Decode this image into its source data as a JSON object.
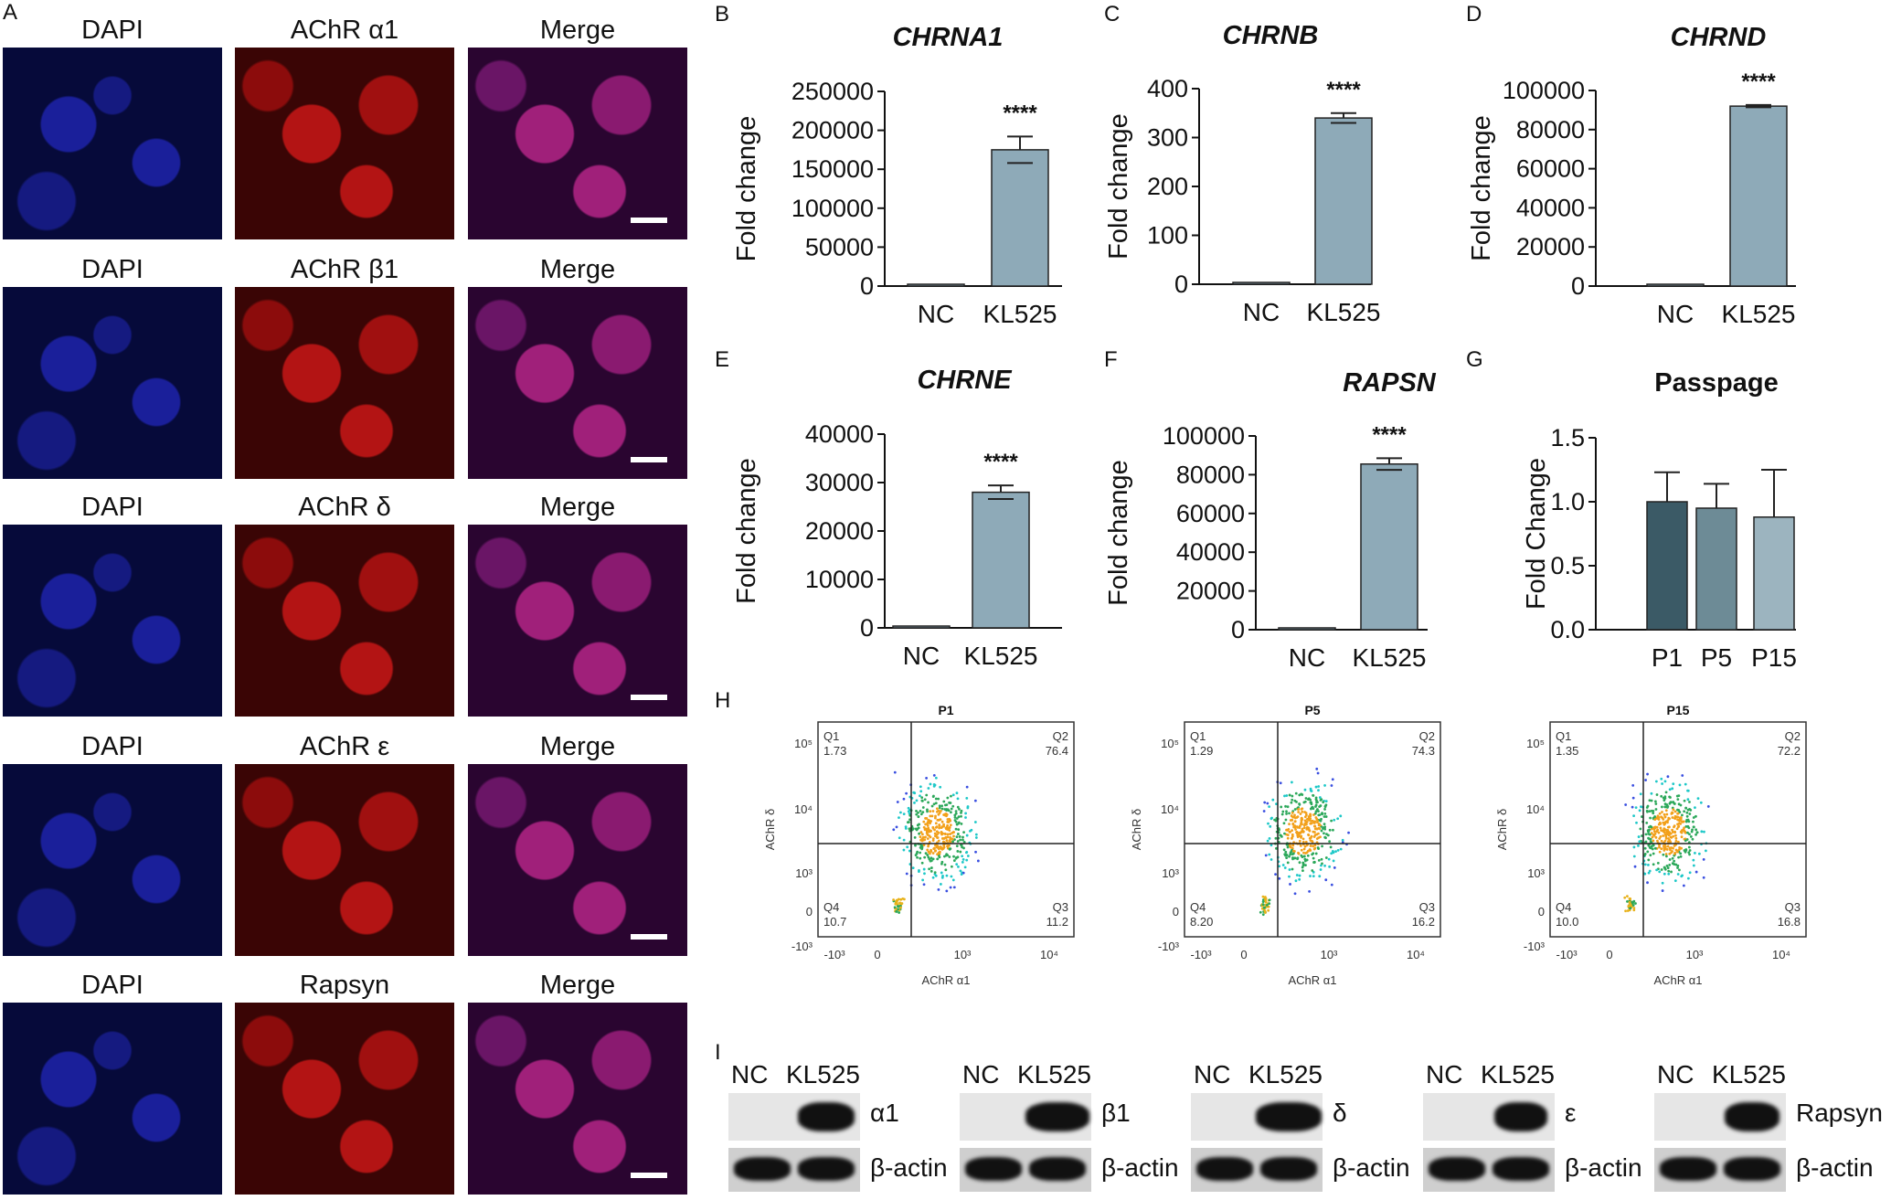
{
  "panel_letters": {
    "A": "A",
    "B": "B",
    "C": "C",
    "D": "D",
    "E": "E",
    "F": "F",
    "G": "G",
    "H": "H",
    "I": "I"
  },
  "microscopy": {
    "rows": [
      {
        "c1": "DAPI",
        "c2": "AChR α1",
        "c3": "Merge"
      },
      {
        "c1": "DAPI",
        "c2": "AChR β1",
        "c3": "Merge"
      },
      {
        "c1": "DAPI",
        "c2": "AChR δ",
        "c3": "Merge"
      },
      {
        "c1": "DAPI",
        "c2": "AChR ε",
        "c3": "Merge"
      },
      {
        "c1": "DAPI",
        "c2": "Rapsyn",
        "c3": "Merge"
      }
    ]
  },
  "chart_data": [
    {
      "type": "bar",
      "title": "CHRNA1",
      "ylabel": "Fold change",
      "categories": [
        "NC",
        "KL525"
      ],
      "values": [
        1,
        175000
      ],
      "errors": [
        0,
        17000
      ],
      "ylim": [
        0,
        250000
      ],
      "ticks": [
        "0",
        "50000",
        "100000",
        "150000",
        "200000",
        "250000"
      ],
      "significance": "****"
    },
    {
      "type": "bar",
      "title": "CHRNB",
      "ylabel": "Fold change",
      "categories": [
        "NC",
        "KL525"
      ],
      "values": [
        3,
        340
      ],
      "errors": [
        0,
        10
      ],
      "ylim": [
        0,
        400
      ],
      "ticks": [
        "0",
        "100",
        "200",
        "300",
        "400"
      ],
      "significance": "****"
    },
    {
      "type": "bar",
      "title": "CHRND",
      "ylabel": "Fold change",
      "categories": [
        "NC",
        "KL525"
      ],
      "values": [
        1,
        92000
      ],
      "errors": [
        0,
        600
      ],
      "ylim": [
        0,
        100000
      ],
      "ticks": [
        "0",
        "20000",
        "40000",
        "60000",
        "80000",
        "100000"
      ],
      "significance": "****"
    },
    {
      "type": "bar",
      "title": "CHRNE",
      "ylabel": "Fold change",
      "categories": [
        "NC",
        "KL525"
      ],
      "values": [
        1,
        28000
      ],
      "errors": [
        0,
        1400
      ],
      "ylim": [
        0,
        40000
      ],
      "ticks": [
        "0",
        "10000",
        "20000",
        "30000",
        "40000"
      ],
      "significance": "****"
    },
    {
      "type": "bar",
      "title": "RAPSN",
      "ylabel": "Fold change",
      "categories": [
        "NC",
        "KL525"
      ],
      "values": [
        1,
        85500
      ],
      "errors": [
        0,
        3000
      ],
      "ylim": [
        0,
        100000
      ],
      "ticks": [
        "0",
        "20000",
        "40000",
        "60000",
        "80000",
        "100000"
      ],
      "significance": "****"
    },
    {
      "type": "bar",
      "title": "Passpage",
      "ylabel": "Fold Change",
      "categories": [
        "P1",
        "P5",
        "P15"
      ],
      "values": [
        1.0,
        0.95,
        0.88
      ],
      "errors": [
        0.23,
        0.19,
        0.37
      ],
      "ylim": [
        0,
        1.5
      ],
      "ticks": [
        "0.0",
        "0.5",
        "1.0",
        "1.5"
      ],
      "colors": [
        "#3b5a66",
        "#6d8b96",
        "#9cb4bf"
      ]
    }
  ],
  "bar_color": "#8eaab8",
  "flow": [
    {
      "title": "P1",
      "q1": "Q1",
      "q1v": "1.73",
      "q2": "Q2",
      "q2v": "76.4",
      "q3": "Q3",
      "q3v": "11.2",
      "q4": "Q4",
      "q4v": "10.7"
    },
    {
      "title": "P5",
      "q1": "Q1",
      "q1v": "1.29",
      "q2": "Q2",
      "q2v": "74.3",
      "q3": "Q3",
      "q3v": "16.2",
      "q4": "Q4",
      "q4v": "8.20"
    },
    {
      "title": "P15",
      "q1": "Q1",
      "q1v": "1.35",
      "q2": "Q2",
      "q2v": "72.2",
      "q3": "Q3",
      "q3v": "16.8",
      "q4": "Q4",
      "q4v": "10.0"
    }
  ],
  "flow_axes": {
    "xlabel": "AChR α1",
    "ylabel": "AChR δ"
  },
  "western": {
    "lanes": [
      "NC",
      "KL525"
    ],
    "targets": [
      "α1",
      "β1",
      "δ",
      "ε",
      "Rapsyn"
    ],
    "loading": "β-actin"
  }
}
